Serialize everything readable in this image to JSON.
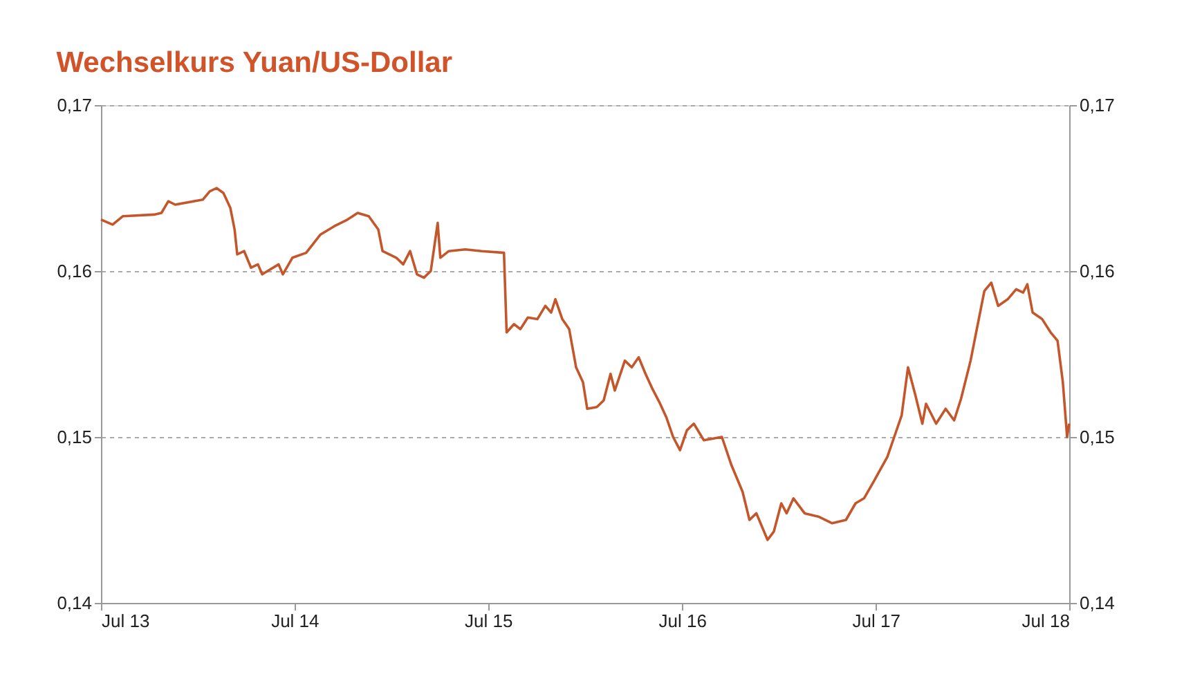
{
  "chart_data": {
    "type": "line",
    "title": "Wechselkurs Yuan/US-Dollar",
    "x": [
      "2013-07-01",
      "2013-07-23",
      "2013-08-11",
      "2013-10-09",
      "2013-10-23",
      "2013-11-05",
      "2013-11-18",
      "2014-01-09",
      "2014-01-22",
      "2014-02-04",
      "2014-02-17",
      "2014-03-02",
      "2014-03-10",
      "2014-03-15",
      "2014-03-28",
      "2014-04-10",
      "2014-04-23",
      "2014-05-01",
      "2014-06-01",
      "2014-06-09",
      "2014-06-27",
      "2014-07-23",
      "2014-08-19",
      "2014-09-14",
      "2014-10-09",
      "2014-10-28",
      "2014-11-18",
      "2014-12-06",
      "2014-12-14",
      "2015-01-09",
      "2015-01-22",
      "2015-02-04",
      "2015-02-17",
      "2015-03-02",
      "2015-03-15",
      "2015-03-28",
      "2015-04-02",
      "2015-04-18",
      "2015-05-19",
      "2015-06-19",
      "2015-07-31",
      "2015-08-05",
      "2015-08-19",
      "2015-08-31",
      "2015-09-14",
      "2015-10-02",
      "2015-10-17",
      "2015-10-28",
      "2015-11-05",
      "2015-11-18",
      "2015-12-01",
      "2015-12-14",
      "2015-12-27",
      "2016-01-04",
      "2016-01-22",
      "2016-02-04",
      "2016-02-17",
      "2016-02-25",
      "2016-03-15",
      "2016-03-28",
      "2016-04-10",
      "2016-04-23",
      "2016-05-06",
      "2016-05-19",
      "2016-06-01",
      "2016-06-14",
      "2016-06-27",
      "2016-07-10",
      "2016-07-23",
      "2016-08-11",
      "2016-09-14",
      "2016-10-02",
      "2016-10-23",
      "2016-11-05",
      "2016-11-18",
      "2016-12-09",
      "2016-12-21",
      "2017-01-04",
      "2017-01-14",
      "2017-01-27",
      "2017-02-17",
      "2017-03-15",
      "2017-04-10",
      "2017-05-06",
      "2017-05-24",
      "2017-06-09",
      "2017-06-27",
      "2017-07-23",
      "2017-08-05",
      "2017-08-19",
      "2017-08-31",
      "2017-09-14",
      "2017-09-27",
      "2017-10-04",
      "2017-10-23",
      "2017-11-10",
      "2017-11-26",
      "2017-12-09",
      "2017-12-27",
      "2018-01-09",
      "2018-01-22",
      "2018-02-04",
      "2018-02-17",
      "2018-03-07",
      "2018-03-23",
      "2018-04-05",
      "2018-04-13",
      "2018-04-23",
      "2018-05-11",
      "2018-05-27",
      "2018-06-09",
      "2018-06-19",
      "2018-06-27",
      "2018-07-01"
    ],
    "series": [
      {
        "color": "#c4562b",
        "values": [
          0.1631,
          0.1628,
          0.1633,
          0.1634,
          0.1635,
          0.1642,
          0.164,
          0.1643,
          0.1648,
          0.165,
          0.1647,
          0.1638,
          0.1625,
          0.161,
          0.1612,
          0.1602,
          0.1604,
          0.1598,
          0.1604,
          0.1598,
          0.1608,
          0.1611,
          0.1622,
          0.1627,
          0.1631,
          0.1635,
          0.1633,
          0.1625,
          0.1612,
          0.1608,
          0.1604,
          0.1612,
          0.1598,
          0.1596,
          0.16,
          0.1629,
          0.1608,
          0.1612,
          0.1613,
          0.1612,
          0.1611,
          0.1563,
          0.1568,
          0.1565,
          0.1572,
          0.1571,
          0.1579,
          0.1575,
          0.1583,
          0.1571,
          0.1565,
          0.1542,
          0.1533,
          0.1517,
          0.1518,
          0.1522,
          0.1538,
          0.1528,
          0.1546,
          0.1542,
          0.1548,
          0.1538,
          0.1529,
          0.1521,
          0.1512,
          0.15,
          0.1492,
          0.1504,
          0.1508,
          0.1498,
          0.15,
          0.1483,
          0.1467,
          0.145,
          0.1454,
          0.1438,
          0.1443,
          0.146,
          0.1454,
          0.1463,
          0.1454,
          0.1452,
          0.1448,
          0.145,
          0.146,
          0.1463,
          0.1473,
          0.1488,
          0.15,
          0.1513,
          0.1542,
          0.1525,
          0.1508,
          0.152,
          0.1508,
          0.1517,
          0.151,
          0.1523,
          0.1546,
          0.1567,
          0.1588,
          0.1593,
          0.1579,
          0.1583,
          0.1589,
          0.1587,
          0.1592,
          0.1575,
          0.1571,
          0.1563,
          0.1558,
          0.1533,
          0.15,
          0.1508
        ]
      }
    ],
    "xlim": [
      "2013-07-01",
      "2018-07-01"
    ],
    "xticks": [
      {
        "value": "2013-07-01",
        "label": "Jul 13"
      },
      {
        "value": "2014-07-01",
        "label": "Jul 14"
      },
      {
        "value": "2015-07-01",
        "label": "Jul 15"
      },
      {
        "value": "2016-07-01",
        "label": "Jul 16"
      },
      {
        "value": "2017-07-01",
        "label": "Jul 17"
      },
      {
        "value": "2018-07-01",
        "label": "Jul 18"
      }
    ],
    "ylim": [
      0.14,
      0.17
    ],
    "yticks": [
      {
        "value": 0.14,
        "label": "0,14"
      },
      {
        "value": 0.15,
        "label": "0,15"
      },
      {
        "value": 0.16,
        "label": "0,16"
      },
      {
        "value": 0.17,
        "label": "0,17"
      }
    ],
    "y2lim": [
      0.14,
      0.17
    ],
    "y2ticks": [
      {
        "value": 0.14,
        "label": "0,14"
      },
      {
        "value": 0.15,
        "label": "0,15"
      },
      {
        "value": 0.16,
        "label": "0,16"
      },
      {
        "value": 0.17,
        "label": "0,17"
      }
    ],
    "grid": "y",
    "marker": "none",
    "line_style": "solid"
  }
}
